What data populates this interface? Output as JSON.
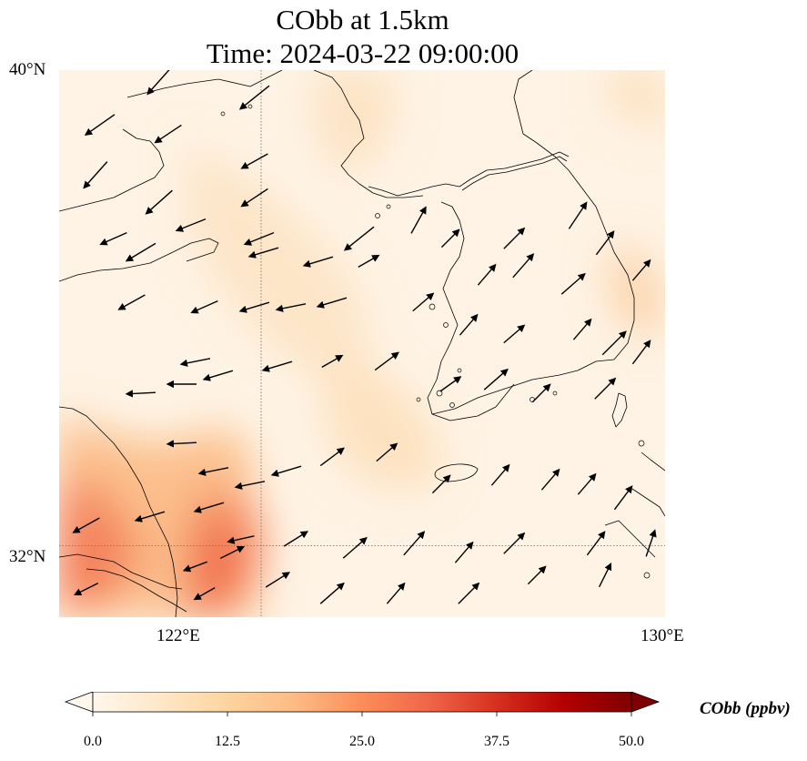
{
  "figure": {
    "title_line1": "CObb at 1.5km",
    "title_line2": "Time: 2024-03-22 09:00:00"
  },
  "map": {
    "lon_range": [
      118,
      130
    ],
    "lat_range": [
      30.8,
      40
    ],
    "gridlines": {
      "lon": [
        122,
        130
      ],
      "lat": [
        32,
        40
      ],
      "style": "dotted"
    },
    "lat_labels": [
      "40°N",
      "32°N"
    ],
    "lon_labels": [
      "122°E",
      "130°E"
    ],
    "field": "CObb",
    "field_colors": {
      "background": "#fef3e4",
      "low": "#fde3c4",
      "mid": "#fcc08d",
      "high": "#f59368",
      "peak": "#f16e4c"
    },
    "vector_color": "#000000",
    "coastline_color": "#000000"
  },
  "colorbar": {
    "label": "CObb (ppbv)",
    "min": 0.0,
    "max": 50.0,
    "extend": "both",
    "cmap": "OrRd",
    "ticks": [
      "0.0",
      "12.5",
      "25.0",
      "37.5",
      "50.0"
    ],
    "colors": [
      "#fff7ec",
      "#fee8c8",
      "#fdd49e",
      "#fdbb84",
      "#fc8d59",
      "#ef6548",
      "#d7301f",
      "#b30000",
      "#7f0000"
    ]
  }
}
